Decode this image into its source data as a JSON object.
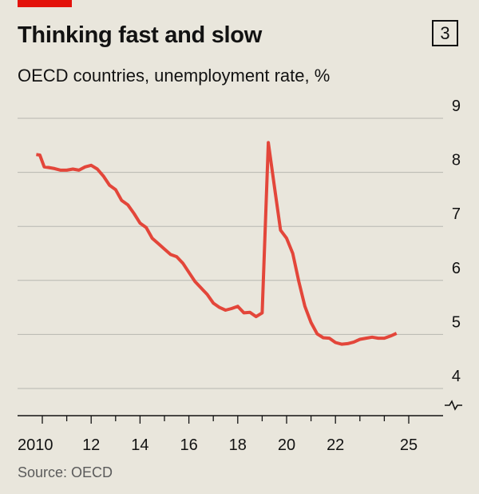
{
  "header": {
    "title": "Thinking fast and slow",
    "subtitle": "OECD countries, unemployment rate, %",
    "badge": "3"
  },
  "footer": {
    "source": "Source: OECD"
  },
  "colors": {
    "line": "#e3463a",
    "accent": "#e3120b",
    "grid": "#b7b7b1",
    "background": "#e9e6dc"
  },
  "chart_data": {
    "type": "line",
    "title": "Thinking fast and slow",
    "subtitle": "OECD countries, unemployment rate, %",
    "xlabel": "",
    "ylabel": "",
    "xlim": [
      2009.5,
      2025.5
    ],
    "ylim": [
      3.6,
      9
    ],
    "y_axis_broken": true,
    "grid": "horizontal",
    "y_ticks": [
      {
        "value": 9,
        "label": "9"
      },
      {
        "value": 8,
        "label": "8"
      },
      {
        "value": 7,
        "label": "7"
      },
      {
        "value": 6,
        "label": "6"
      },
      {
        "value": 5,
        "label": "5"
      },
      {
        "value": 4,
        "label": "4"
      }
    ],
    "x_ticks": [
      {
        "value": 2010,
        "label": "2010"
      },
      {
        "value": 2012,
        "label": "12"
      },
      {
        "value": 2014,
        "label": "14"
      },
      {
        "value": 2016,
        "label": "16"
      },
      {
        "value": 2018,
        "label": "18"
      },
      {
        "value": 2020,
        "label": "20"
      },
      {
        "value": 2022,
        "label": "22"
      },
      {
        "value": 2025,
        "label": "25"
      }
    ],
    "x_minor_ticks": [
      2011,
      2013,
      2015,
      2017,
      2019,
      2021,
      2023,
      2024
    ],
    "series": [
      {
        "name": "",
        "color": "#e3463a",
        "points": [
          [
            2009.75,
            8.33
          ],
          [
            2009.9,
            8.32
          ],
          [
            2010.08,
            8.1
          ],
          [
            2010.25,
            8.09
          ],
          [
            2010.5,
            8.07
          ],
          [
            2010.75,
            8.04
          ],
          [
            2011.0,
            8.04
          ],
          [
            2011.25,
            8.06
          ],
          [
            2011.5,
            8.04
          ],
          [
            2011.75,
            8.1
          ],
          [
            2012.0,
            8.13
          ],
          [
            2012.25,
            8.06
          ],
          [
            2012.5,
            7.93
          ],
          [
            2012.75,
            7.76
          ],
          [
            2013.0,
            7.68
          ],
          [
            2013.25,
            7.48
          ],
          [
            2013.5,
            7.4
          ],
          [
            2013.75,
            7.24
          ],
          [
            2014.0,
            7.06
          ],
          [
            2014.25,
            6.98
          ],
          [
            2014.5,
            6.78
          ],
          [
            2014.75,
            6.68
          ],
          [
            2015.0,
            6.58
          ],
          [
            2015.25,
            6.48
          ],
          [
            2015.5,
            6.44
          ],
          [
            2015.75,
            6.32
          ],
          [
            2016.0,
            6.15
          ],
          [
            2016.25,
            5.98
          ],
          [
            2016.5,
            5.86
          ],
          [
            2016.75,
            5.74
          ],
          [
            2017.0,
            5.58
          ],
          [
            2017.25,
            5.5
          ],
          [
            2017.5,
            5.45
          ],
          [
            2017.75,
            5.48
          ],
          [
            2018.0,
            5.52
          ],
          [
            2018.25,
            5.4
          ],
          [
            2018.5,
            5.41
          ],
          [
            2018.75,
            5.33
          ],
          [
            2019.0,
            5.4
          ],
          [
            2019.25,
            8.55
          ],
          [
            2019.5,
            7.74
          ],
          [
            2019.75,
            6.93
          ],
          [
            2020.0,
            6.78
          ],
          [
            2020.25,
            6.5
          ],
          [
            2020.5,
            5.98
          ],
          [
            2020.75,
            5.52
          ],
          [
            2021.0,
            5.22
          ],
          [
            2021.25,
            5.01
          ],
          [
            2021.5,
            4.94
          ],
          [
            2021.75,
            4.93
          ],
          [
            2022.0,
            4.85
          ],
          [
            2022.25,
            4.82
          ],
          [
            2022.5,
            4.83
          ],
          [
            2022.75,
            4.86
          ],
          [
            2023.0,
            4.91
          ],
          [
            2023.25,
            4.93
          ],
          [
            2023.5,
            4.95
          ],
          [
            2023.75,
            4.93
          ],
          [
            2024.0,
            4.93
          ],
          [
            2024.25,
            4.97
          ],
          [
            2024.5,
            5.02
          ]
        ]
      }
    ]
  }
}
